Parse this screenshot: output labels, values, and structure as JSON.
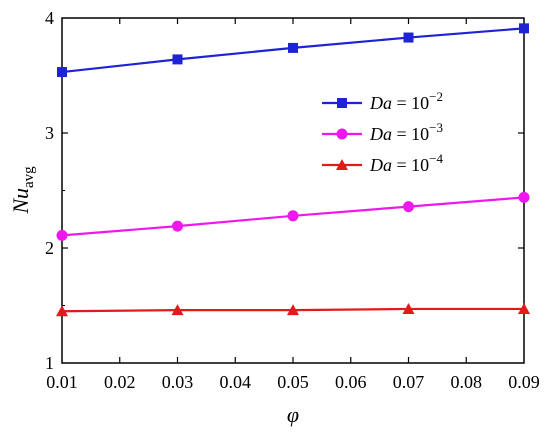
{
  "chart_data": {
    "type": "line",
    "xlabel": "φ",
    "ylabel": {
      "main": "Nu",
      "sub": "avg"
    },
    "xlim": [
      0.01,
      0.09
    ],
    "ylim": [
      1,
      4
    ],
    "x_ticks": [
      "0.01",
      "0.02",
      "0.03",
      "0.04",
      "0.05",
      "0.06",
      "0.07",
      "0.08",
      "0.09"
    ],
    "y_ticks": [
      "1",
      "2",
      "3",
      "4"
    ],
    "x": [
      0.01,
      0.03,
      0.05,
      0.07,
      0.09
    ],
    "grid": false,
    "legend_position": "right",
    "series": [
      {
        "legend_italic": "Da",
        "legend_rest": " = 10",
        "legend_exp": "−2",
        "marker": "square",
        "color": "#1f23d6",
        "values": [
          3.53,
          3.64,
          3.74,
          3.83,
          3.91
        ]
      },
      {
        "legend_italic": "Da",
        "legend_rest": " = 10",
        "legend_exp": "−3",
        "marker": "circle",
        "color": "#ee18ee",
        "values": [
          2.11,
          2.19,
          2.28,
          2.36,
          2.44
        ]
      },
      {
        "legend_italic": "Da",
        "legend_rest": " = 10",
        "legend_exp": "−4",
        "marker": "triangle",
        "color": "#e31a1a",
        "values": [
          1.45,
          1.46,
          1.46,
          1.47,
          1.47
        ]
      }
    ]
  }
}
